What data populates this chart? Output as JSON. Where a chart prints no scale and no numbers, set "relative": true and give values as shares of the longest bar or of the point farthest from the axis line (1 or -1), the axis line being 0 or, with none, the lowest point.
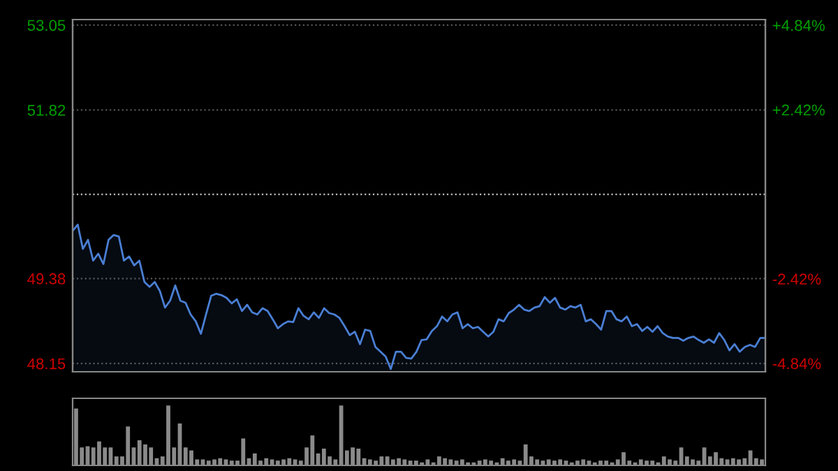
{
  "chart_data": [
    {
      "type": "area",
      "categories": [
        null,
        null,
        null,
        null,
        null,
        null,
        null,
        null,
        null,
        null,
        null,
        null,
        null,
        null,
        null,
        null,
        null,
        null,
        null,
        null,
        null,
        null,
        null,
        null,
        null,
        null,
        null,
        null,
        null,
        null,
        null,
        null,
        null,
        null,
        null,
        null,
        null,
        null,
        null,
        null,
        null,
        null,
        null,
        null,
        null,
        null,
        null,
        null,
        null,
        null,
        null,
        null,
        null,
        null,
        null,
        null,
        null,
        null,
        null,
        null,
        null,
        null,
        null,
        null,
        null,
        null,
        null,
        null,
        null,
        null,
        null,
        null,
        null,
        null,
        null,
        null,
        null,
        null,
        null,
        null,
        null,
        null,
        null,
        null,
        null,
        null,
        null,
        null,
        null,
        null,
        null,
        null,
        null,
        null,
        null,
        null,
        null,
        null,
        null,
        null,
        null,
        null,
        null,
        null,
        null,
        null,
        null,
        null,
        null,
        null,
        null,
        null,
        null,
        null,
        null,
        null,
        null,
        null,
        null,
        null,
        null,
        null,
        null,
        null,
        null,
        null,
        null,
        null,
        null,
        null,
        null,
        null,
        null,
        null,
        null,
        null
      ],
      "ylim": [
        48.03,
        53.13
      ],
      "yticks": [
        48.15,
        49.38,
        51.82,
        53.05
      ],
      "y2lim": [
        -5.08,
        5.0
      ],
      "y2ticks": [
        {
          "value": -4.84,
          "label": "-4.84%"
        },
        {
          "value": -2.42,
          "label": "-2.42%"
        },
        {
          "value": 2.42,
          "label": "+2.42%"
        },
        {
          "value": 4.84,
          "label": "+4.84%"
        }
      ],
      "grid": "y",
      "ref_lines": [
        {
          "axis": "y",
          "value": 50.6,
          "color": "#bbbbbb",
          "line_style": "dotted"
        }
      ],
      "series": [
        {
          "color": "#4a7fd4",
          "values": [
            50.07,
            50.16,
            49.81,
            49.94,
            49.64,
            49.74,
            49.59,
            49.94,
            50.01,
            49.99,
            49.64,
            49.7,
            49.57,
            49.64,
            49.33,
            49.26,
            49.33,
            49.2,
            48.96,
            49.06,
            49.28,
            49.06,
            49.03,
            48.86,
            48.76,
            48.58,
            48.86,
            49.13,
            49.16,
            49.14,
            49.1,
            49.02,
            49.08,
            48.91,
            49.0,
            48.89,
            48.86,
            48.95,
            48.91,
            48.79,
            48.66,
            48.72,
            48.76,
            48.75,
            48.95,
            48.84,
            48.79,
            48.89,
            48.81,
            48.95,
            48.88,
            48.86,
            48.81,
            48.69,
            48.56,
            48.61,
            48.43,
            48.64,
            48.62,
            48.39,
            48.32,
            48.25,
            48.07,
            48.32,
            48.32,
            48.23,
            48.22,
            48.32,
            48.49,
            48.5,
            48.62,
            48.69,
            48.83,
            48.76,
            48.86,
            48.89,
            48.66,
            48.72,
            48.66,
            48.68,
            48.61,
            48.54,
            48.61,
            48.79,
            48.76,
            48.88,
            48.93,
            49.0,
            48.93,
            48.91,
            48.96,
            48.98,
            49.11,
            49.03,
            49.1,
            48.96,
            48.93,
            48.98,
            48.96,
            49.0,
            48.76,
            48.79,
            48.72,
            48.64,
            48.91,
            48.91,
            48.79,
            48.76,
            48.83,
            48.69,
            48.72,
            48.62,
            48.68,
            48.61,
            48.69,
            48.59,
            48.54,
            48.52,
            48.52,
            48.48,
            48.52,
            48.54,
            48.49,
            48.45,
            48.5,
            48.45,
            48.59,
            48.49,
            48.34,
            48.43,
            48.32,
            48.39,
            48.42,
            48.39,
            48.52,
            48.52
          ]
        }
      ]
    },
    {
      "type": "bar",
      "relative": true,
      "color": "#8a8a8a",
      "categories": [
        null,
        null,
        null,
        null,
        null,
        null,
        null,
        null,
        null,
        null,
        null,
        null,
        null,
        null,
        null,
        null,
        null,
        null,
        null,
        null,
        null,
        null,
        null,
        null,
        null,
        null,
        null,
        null,
        null,
        null,
        null,
        null,
        null,
        null,
        null,
        null,
        null,
        null,
        null,
        null,
        null,
        null,
        null,
        null,
        null,
        null,
        null,
        null,
        null,
        null,
        null,
        null,
        null,
        null,
        null,
        null,
        null,
        null,
        null,
        null,
        null,
        null,
        null,
        null,
        null,
        null,
        null,
        null,
        null,
        null,
        null,
        null,
        null,
        null,
        null,
        null,
        null,
        null,
        null,
        null,
        null,
        null,
        null,
        null,
        null,
        null,
        null,
        null,
        null,
        null,
        null,
        null,
        null,
        null,
        null,
        null,
        null,
        null,
        null,
        null,
        null,
        null,
        null,
        null,
        null,
        null,
        null,
        null,
        null,
        null,
        null,
        null,
        null,
        null,
        null,
        null,
        null,
        null,
        null,
        null
      ],
      "values": [
        0.95,
        0.3,
        0.32,
        0.3,
        0.4,
        0.3,
        0.3,
        0.15,
        0.15,
        0.65,
        0.3,
        0.42,
        0.35,
        0.3,
        0.12,
        0.15,
        1.0,
        0.3,
        0.7,
        0.3,
        0.25,
        0.1,
        0.1,
        0.08,
        0.1,
        0.12,
        0.1,
        0.08,
        0.08,
        0.45,
        0.12,
        0.2,
        0.08,
        0.12,
        0.1,
        0.08,
        0.1,
        0.12,
        0.1,
        0.08,
        0.3,
        0.5,
        0.2,
        0.28,
        0.15,
        0.1,
        1.0,
        0.25,
        0.3,
        0.28,
        0.12,
        0.1,
        0.08,
        0.15,
        0.15,
        0.1,
        0.12,
        0.1,
        0.08,
        0.08,
        0.05,
        0.1,
        0.05,
        0.15,
        0.12,
        0.1,
        0.08,
        0.1,
        0.05,
        0.05,
        0.08,
        0.1,
        0.08,
        0.05,
        0.12,
        0.08,
        0.1,
        0.08,
        0.35,
        0.15,
        0.1,
        0.08,
        0.1,
        0.08,
        0.1,
        0.08,
        0.05,
        0.08,
        0.1,
        0.08,
        0.05,
        0.08,
        0.08,
        0.05,
        0.1,
        0.22,
        0.08,
        0.05,
        0.1,
        0.08,
        0.08,
        0.05,
        0.15,
        0.1,
        0.08,
        0.3,
        0.15,
        0.1,
        0.08,
        0.3,
        0.15,
        0.22,
        0.12,
        0.1,
        0.12,
        0.1,
        0.12,
        0.25,
        0.12,
        0.1
      ]
    }
  ]
}
